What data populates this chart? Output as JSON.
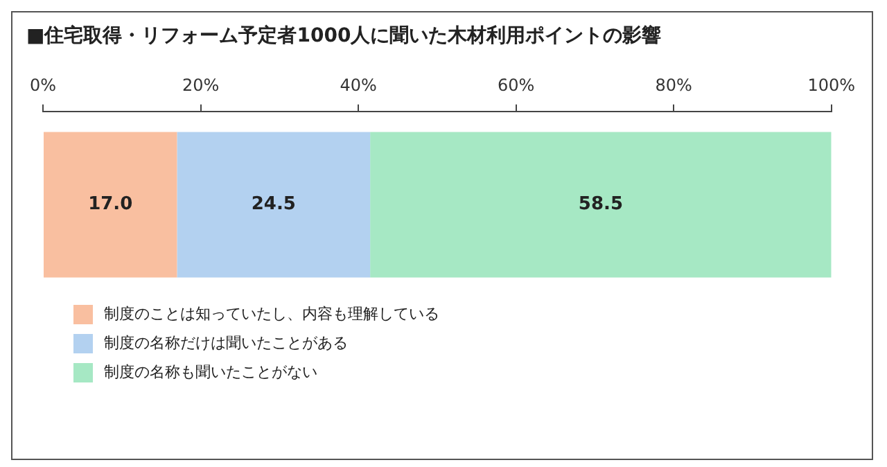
{
  "chart_data": {
    "type": "bar",
    "orientation": "horizontal",
    "stacked": true,
    "title": "■住宅取得・リフォーム予定者1000人に聞いた木材利用ポイントの影響",
    "categories": [
      null
    ],
    "series": [
      {
        "name": "制度のことは知っていたし、内容も理解している",
        "color": "#f9bfa0",
        "values": [
          17.0
        ],
        "value_labels": [
          "17.0"
        ]
      },
      {
        "name": "制度の名称だけは聞いたことがある",
        "color": "#b3d1f0",
        "values": [
          24.5
        ],
        "value_labels": [
          "24.5"
        ]
      },
      {
        "name": "制度の名称も聞いたことがない",
        "color": "#a6e8c4",
        "values": [
          58.5
        ],
        "value_labels": [
          "58.5"
        ]
      }
    ],
    "xlim": [
      0,
      100
    ],
    "xticks": [
      {
        "value": 0,
        "label": "0%"
      },
      {
        "value": 20,
        "label": "20%"
      },
      {
        "value": 40,
        "label": "40%"
      },
      {
        "value": 60,
        "label": "60%"
      },
      {
        "value": 80,
        "label": "80%"
      },
      {
        "value": 100,
        "label": "100%"
      }
    ],
    "legend": "bottom left"
  }
}
